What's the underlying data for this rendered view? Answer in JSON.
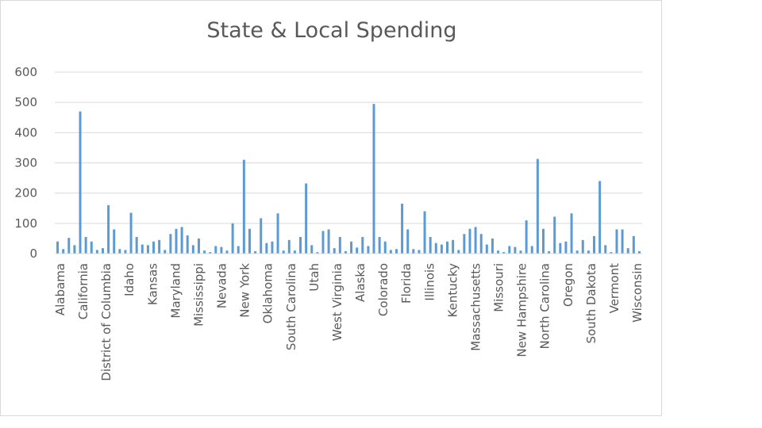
{
  "chart_data": {
    "type": "bar",
    "title": "State & Local Spending",
    "xlabel": "",
    "ylabel": "",
    "ylim": [
      0,
      600
    ],
    "y_ticks": [
      0,
      100,
      200,
      300,
      400,
      500,
      600
    ],
    "grid": true,
    "legend": "none",
    "colors": {
      "bar": "#5b9bd5",
      "grid": "#d9d9d9",
      "text": "#595959"
    },
    "category_labels": [
      "Alabama",
      "California",
      "District of Columbia",
      "Idaho",
      "Kansas",
      "Maryland",
      "Mississippi",
      "Nevada",
      "New York",
      "Oklahoma",
      "South Carolina",
      "Utah",
      "West Virginia",
      "Alaska",
      "Colorado",
      "Florida",
      "Illinois",
      "Kentucky",
      "Massachusetts",
      "Missouri",
      "New Hampshire",
      "North Carolina",
      "Oregon",
      "South Dakota",
      "Vermont",
      "Wisconsin"
    ],
    "values": [
      40,
      15,
      52,
      28,
      470,
      55,
      40,
      12,
      18,
      160,
      80,
      15,
      12,
      135,
      55,
      30,
      28,
      40,
      45,
      12,
      65,
      82,
      88,
      60,
      28,
      50,
      10,
      5,
      25,
      22,
      10,
      100,
      25,
      310,
      82,
      8,
      117,
      35,
      40,
      133,
      10,
      45,
      10,
      55,
      232,
      28,
      5,
      75,
      80,
      18,
      55,
      8,
      40,
      20,
      55,
      25,
      495,
      55,
      40,
      12,
      15,
      165,
      80,
      15,
      12,
      140,
      55,
      35,
      30,
      40,
      45,
      12,
      65,
      82,
      88,
      65,
      30,
      50,
      10,
      5,
      25,
      22,
      10,
      110,
      25,
      313,
      82,
      8,
      122,
      35,
      40,
      133,
      10,
      45,
      10,
      58,
      240,
      28,
      5,
      80,
      80,
      18,
      58,
      8
    ]
  }
}
